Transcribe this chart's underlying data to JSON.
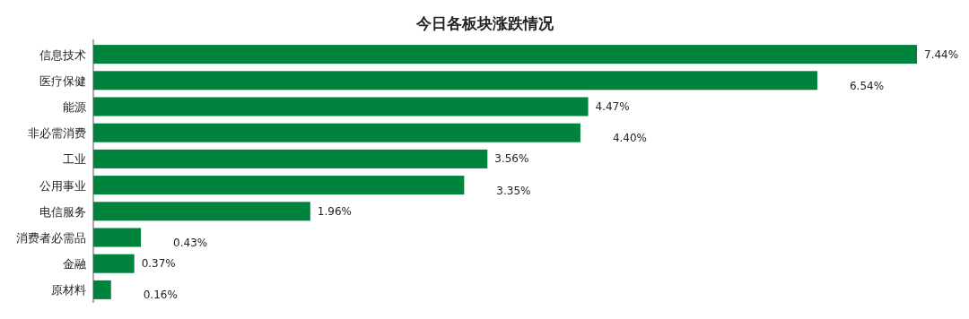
{
  "chart_data": {
    "type": "bar",
    "orientation": "horizontal",
    "title": "今日各板块涨跌情况",
    "categories": [
      "信息技术",
      "医疗保健",
      "能源",
      "非必需消费",
      "工业",
      "公用事业",
      "电信服务",
      "消费者必需品",
      "金融",
      "原材料"
    ],
    "values": [
      7.44,
      6.54,
      4.47,
      4.4,
      3.56,
      3.35,
      1.96,
      0.43,
      0.37,
      0.16
    ],
    "value_labels": [
      "7.44%",
      "6.54%",
      "4.47%",
      "4.40%",
      "3.56%",
      "3.35%",
      "1.96%",
      "0.43%",
      "0.37%",
      "0.16%"
    ],
    "color": "#00843d"
  }
}
